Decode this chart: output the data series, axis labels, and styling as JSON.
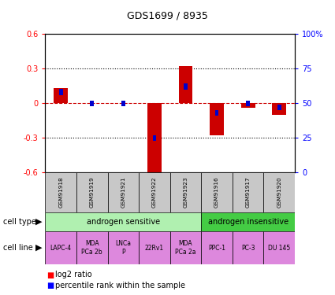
{
  "title": "GDS1699 / 8935",
  "samples": [
    "GSM91918",
    "GSM91919",
    "GSM91921",
    "GSM91922",
    "GSM91923",
    "GSM91916",
    "GSM91917",
    "GSM91920"
  ],
  "log2_ratio": [
    0.13,
    0.0,
    0.0,
    -0.62,
    0.32,
    -0.28,
    -0.04,
    -0.1
  ],
  "percentile_rank_pct": [
    58,
    50,
    50,
    25,
    62,
    43,
    50,
    47
  ],
  "cell_types": [
    {
      "label": "androgen sensitive",
      "start": 0,
      "end": 5,
      "color": "#b0f0b0"
    },
    {
      "label": "androgen insensitive",
      "start": 5,
      "end": 8,
      "color": "#44cc44"
    }
  ],
  "cell_lines": [
    {
      "label": "LAPC-4",
      "col": 0
    },
    {
      "label": "MDA\nPCa 2b",
      "col": 1
    },
    {
      "label": "LNCa\nP",
      "col": 2
    },
    {
      "label": "22Rv1",
      "col": 3
    },
    {
      "label": "MDA\nPCa 2a",
      "col": 4
    },
    {
      "label": "PPC-1",
      "col": 5
    },
    {
      "label": "PC-3",
      "col": 6
    },
    {
      "label": "DU 145",
      "col": 7
    }
  ],
  "ylim": [
    -0.6,
    0.6
  ],
  "yticks_left": [
    -0.6,
    -0.3,
    0.0,
    0.3,
    0.6
  ],
  "yticks_right_pct": [
    0,
    25,
    50,
    75,
    100
  ],
  "bar_color": "#cc0000",
  "percentile_color": "#0000cc",
  "zero_line_color": "#cc0000",
  "sample_box_color": "#c8c8c8",
  "cell_line_color": "#dd88dd",
  "legend_red_label": "log2 ratio",
  "legend_blue_label": "percentile rank within the sample"
}
